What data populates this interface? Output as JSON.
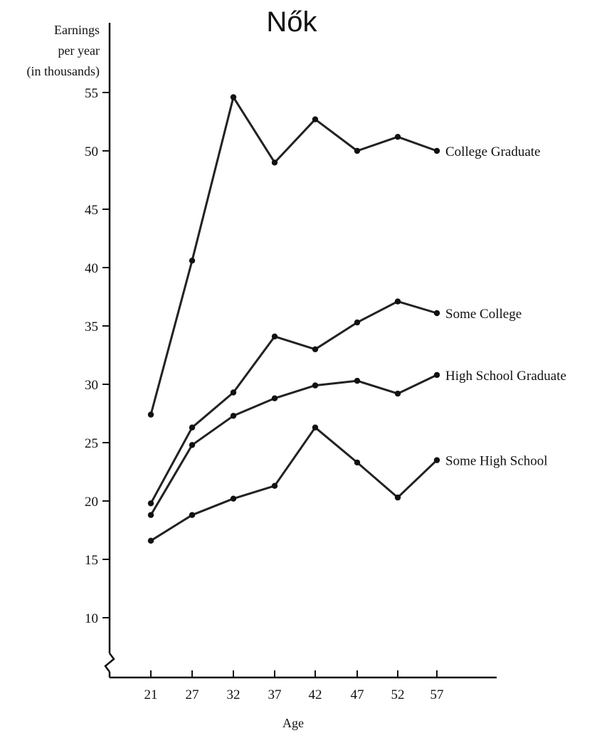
{
  "chart_data": {
    "type": "line",
    "title": "Nők",
    "ylabel_lines": [
      "Earnings",
      "per year",
      "(in thousands)"
    ],
    "xlabel": "Age",
    "x": [
      21,
      27,
      32,
      37,
      42,
      47,
      52,
      57
    ],
    "x_tick_labels": [
      "21",
      "27",
      "32",
      "37",
      "42",
      "47",
      "52",
      "57"
    ],
    "y_ticks": [
      10,
      15,
      20,
      25,
      30,
      35,
      40,
      45,
      50,
      55
    ],
    "y_tick_labels": [
      "10",
      "15",
      "20",
      "25",
      "30",
      "35",
      "40",
      "45",
      "50",
      "55"
    ],
    "ylim": [
      6,
      57
    ],
    "y_axis_break": true,
    "grid": false,
    "legend": "inline labels at right end of each line",
    "series": [
      {
        "name": "College Graduate",
        "values": [
          27.4,
          40.6,
          54.6,
          49.0,
          52.7,
          50.0,
          51.2,
          50.0
        ]
      },
      {
        "name": "Some College",
        "values": [
          19.8,
          26.3,
          29.3,
          34.1,
          33.0,
          35.3,
          37.1,
          36.1
        ]
      },
      {
        "name": "High School Graduate",
        "values": [
          18.8,
          24.8,
          27.3,
          28.8,
          29.9,
          30.3,
          29.2,
          30.8
        ]
      },
      {
        "name": "Some High School",
        "values": [
          16.6,
          18.8,
          20.2,
          21.3,
          26.3,
          23.3,
          20.3,
          23.5
        ]
      }
    ]
  }
}
